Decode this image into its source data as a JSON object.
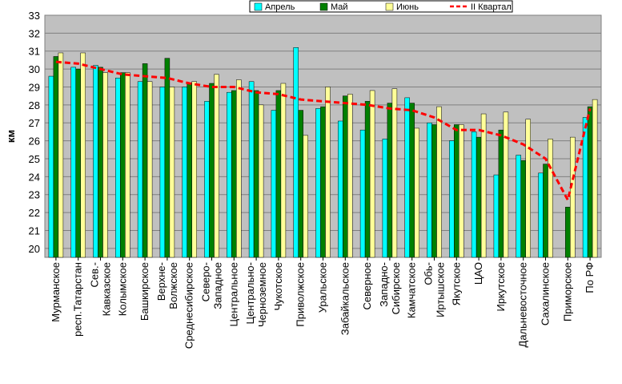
{
  "chart_data": {
    "type": "bar",
    "ylabel": "км",
    "ylim": [
      19.5,
      33
    ],
    "yticks": [
      20,
      21,
      22,
      23,
      24,
      25,
      26,
      27,
      28,
      29,
      30,
      31,
      32,
      33
    ],
    "grid": true,
    "legend_position": "top-right",
    "categories": [
      [
        "Мурманское"
      ],
      [
        "респ.Татарстан"
      ],
      [
        "Сев.-",
        "Кавказское"
      ],
      [
        "Колымское"
      ],
      [
        "Башкирское"
      ],
      [
        "Верхне-",
        "Волжское"
      ],
      [
        "Среднесибирское"
      ],
      [
        "Северо-",
        "Западное"
      ],
      [
        "Центральное"
      ],
      [
        "Центрально-",
        "Черноземное"
      ],
      [
        "Чукотское"
      ],
      [
        "Приволжское"
      ],
      [
        "Уральское"
      ],
      [
        "Забайкальское"
      ],
      [
        "Северное"
      ],
      [
        "Западно-",
        "Сибирское"
      ],
      [
        "Камчатское"
      ],
      [
        "Обь-",
        "Иртышское"
      ],
      [
        "Якутское"
      ],
      [
        "ЦАО"
      ],
      [
        "Иркутское"
      ],
      [
        "Дальневосточное"
      ],
      [
        "Сахалинское"
      ],
      [
        "Приморское"
      ],
      [
        "По РФ"
      ]
    ],
    "series": [
      {
        "name": "Апрель",
        "type": "bar",
        "color": "#00ffff",
        "values": [
          29.6,
          30.1,
          30.2,
          29.5,
          29.3,
          29.0,
          29.0,
          28.2,
          28.7,
          29.3,
          27.7,
          31.2,
          27.8,
          27.1,
          26.6,
          26.1,
          28.4,
          27.0,
          26.0,
          26.5,
          24.1,
          25.2,
          24.2,
          19.5,
          27.3
        ]
      },
      {
        "name": "Май",
        "type": "bar",
        "color": "#008000",
        "values": [
          30.7,
          30.0,
          30.1,
          29.8,
          30.3,
          30.6,
          29.2,
          29.2,
          28.8,
          28.8,
          28.8,
          27.7,
          27.9,
          28.5,
          28.2,
          28.1,
          28.1,
          26.9,
          26.9,
          26.2,
          26.6,
          24.9,
          24.7,
          22.3,
          27.9
        ]
      },
      {
        "name": "Июнь",
        "type": "bar",
        "color": "#ffff99",
        "values": [
          30.9,
          30.9,
          29.8,
          29.8,
          29.3,
          29.0,
          29.3,
          29.7,
          29.4,
          28.0,
          29.2,
          26.3,
          29.0,
          28.6,
          28.8,
          28.9,
          26.7,
          27.9,
          26.9,
          27.5,
          27.6,
          27.2,
          26.1,
          26.2,
          28.3
        ]
      },
      {
        "name": "II Квартал",
        "type": "line",
        "color": "#ff0000",
        "values": [
          30.4,
          30.3,
          30.0,
          29.7,
          29.6,
          29.5,
          29.2,
          29.0,
          29.0,
          28.7,
          28.6,
          28.3,
          28.2,
          28.1,
          28.0,
          27.8,
          27.7,
          27.3,
          26.6,
          26.6,
          26.3,
          25.8,
          25.0,
          22.7,
          27.8
        ]
      }
    ]
  }
}
